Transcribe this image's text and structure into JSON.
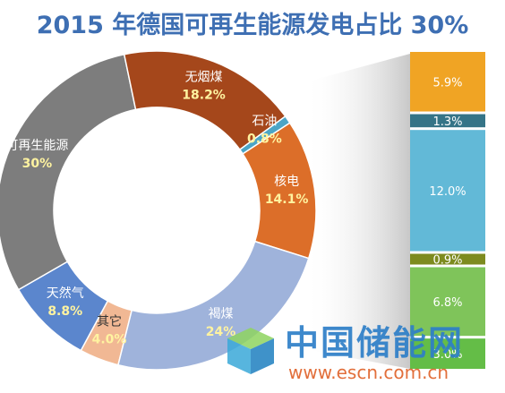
{
  "chart_data": {
    "type": "donut",
    "title": "2015 年德国可再生能源发电占比 30%",
    "slices": [
      {
        "name": "其它",
        "label": "4.0%",
        "value": 4.0,
        "color": "#f1b894"
      },
      {
        "name": "天然气",
        "label": "8.8%",
        "value": 8.8,
        "color": "#5b86cd"
      },
      {
        "name": "可再生能源",
        "label": "30%",
        "value": 30.0,
        "color": "#7d7d7d"
      },
      {
        "name": "无烟煤",
        "label": "18.2%",
        "value": 18.2,
        "color": "#a5471b"
      },
      {
        "name": "石油",
        "label": "0.8%",
        "value": 0.8,
        "color": "#4ba5c6"
      },
      {
        "name": "核电",
        "label": "14.1%",
        "value": 14.1,
        "color": "#dc6e29"
      },
      {
        "name": "褐煤",
        "label": "24%",
        "value": 24.0,
        "color": "#9fb3db"
      }
    ],
    "breakdown": {
      "type": "stacked-bar",
      "segments": [
        {
          "label": "5.9%",
          "value": 5.9,
          "color": "#f0a424"
        },
        {
          "label": "1.3%",
          "value": 1.3,
          "color": "#357487"
        },
        {
          "label": "12.0%",
          "value": 12.0,
          "color": "#62b9d7"
        },
        {
          "label": "0.9%",
          "value": 0.9,
          "color": "#7d8b1f"
        },
        {
          "label": "6.8%",
          "value": 6.8,
          "color": "#7fc45a"
        },
        {
          "label": "3.0%",
          "value": 3.0,
          "color": "#64bd47"
        }
      ]
    }
  },
  "watermark": {
    "text": "中国储能网",
    "url": "www.escn.com.cn"
  },
  "colors": {
    "title": "#3e6fb3",
    "band": "#d4d4d4"
  }
}
